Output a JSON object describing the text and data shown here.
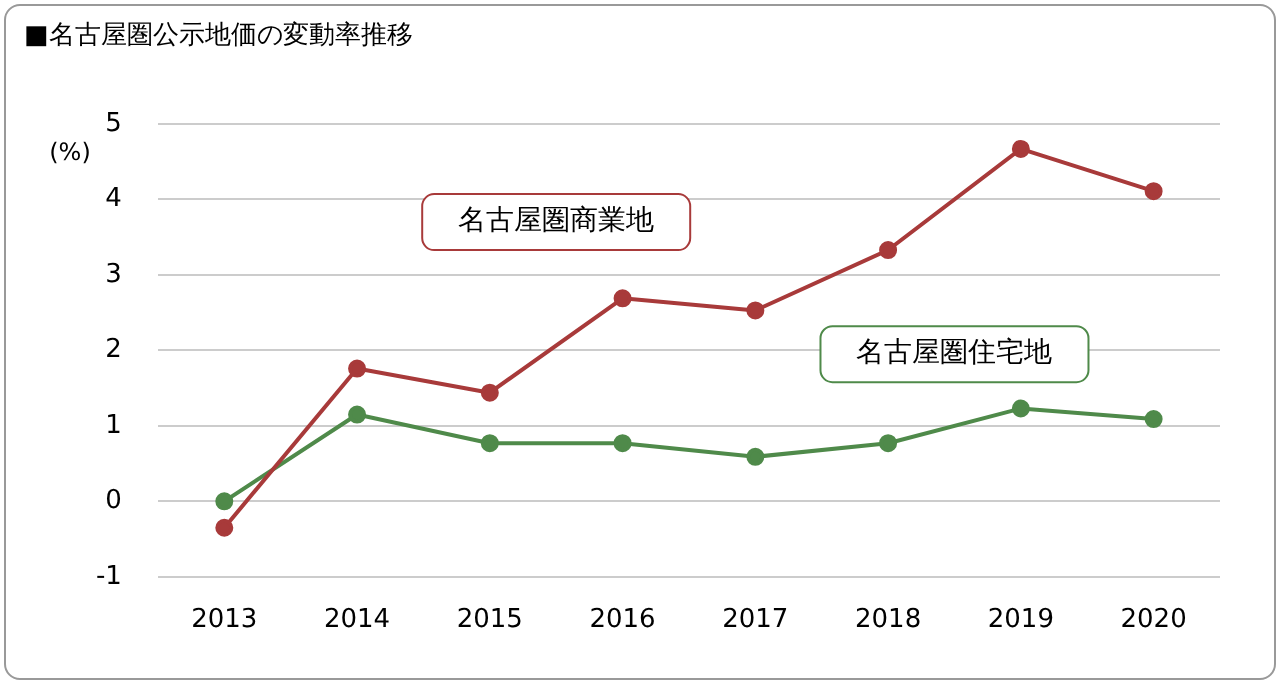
{
  "chart_data": {
    "type": "line",
    "title": "■名古屋圏公示地価の変動率推移",
    "ylabel": "(%)",
    "categories": [
      "2013",
      "2014",
      "2015",
      "2016",
      "2017",
      "2018",
      "2019",
      "2020"
    ],
    "series": [
      {
        "name": "名古屋圏商業地",
        "color": "#a83a3a",
        "values": [
          -0.35,
          1.76,
          1.44,
          2.69,
          2.53,
          3.33,
          4.67,
          4.11
        ]
      },
      {
        "name": "名古屋圏住宅地",
        "color": "#4f8a4a",
        "values": [
          0,
          1.15,
          0.77,
          0.77,
          0.59,
          0.77,
          1.23,
          1.09
        ]
      }
    ],
    "ylim": [
      -1,
      5
    ],
    "yticks": [
      -1,
      0,
      1,
      2,
      3,
      4,
      5
    ],
    "grid": "y",
    "legend": false,
    "marker": "circle",
    "line_style": "solid"
  }
}
